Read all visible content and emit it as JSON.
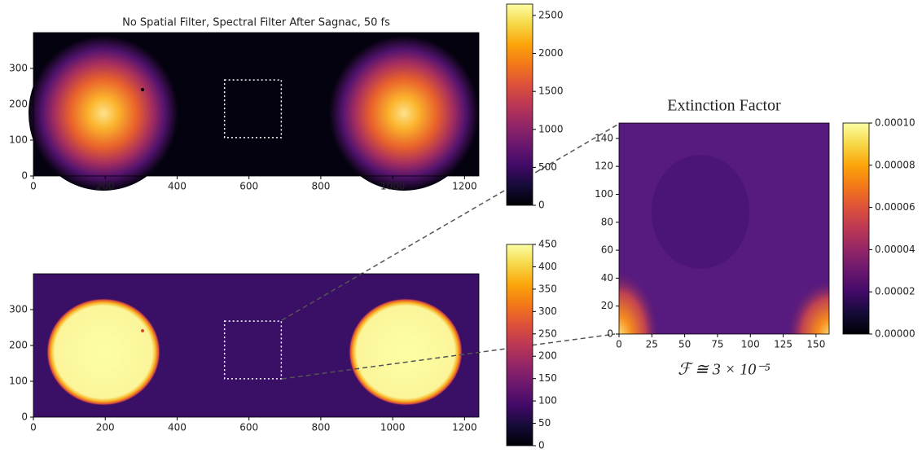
{
  "chart_data": [
    {
      "type": "heatmap",
      "title": "No Spatial Filter, Spectral Filter After Sagnac, 50 fs",
      "xlim": [
        0,
        1240
      ],
      "ylim": [
        0,
        400
      ],
      "xticks": [
        0,
        200,
        400,
        600,
        800,
        1000,
        1200
      ],
      "yticks": [
        0,
        100,
        200,
        300
      ],
      "clim": [
        0,
        2650
      ],
      "cticks": [
        0,
        500,
        1000,
        1500,
        2000,
        2500
      ],
      "colormap": "inferno",
      "roi": {
        "x": [
          532,
          690
        ],
        "y": [
          107,
          268
        ]
      }
    },
    {
      "type": "heatmap",
      "xlim": [
        0,
        1240
      ],
      "ylim": [
        0,
        400
      ],
      "xticks": [
        0,
        200,
        400,
        600,
        800,
        1000,
        1200
      ],
      "yticks": [
        0,
        100,
        200,
        300
      ],
      "clim": [
        0,
        450
      ],
      "cticks": [
        0,
        50,
        100,
        150,
        200,
        250,
        300,
        350,
        400,
        450
      ],
      "colormap": "inferno",
      "roi": {
        "x": [
          532,
          690
        ],
        "y": [
          107,
          268
        ]
      }
    },
    {
      "type": "heatmap",
      "title": "Extinction Factor",
      "annotation": "ℱ ≅ 3 × 10⁻⁵",
      "xlim": [
        0,
        160
      ],
      "ylim": [
        0,
        151
      ],
      "xticks": [
        0,
        25,
        50,
        75,
        100,
        125,
        150
      ],
      "yticks": [
        0,
        20,
        40,
        60,
        80,
        100,
        120,
        140
      ],
      "clim": [
        0,
        0.0001
      ],
      "cticks": [
        {
          "value": 0,
          "label": "0.00000"
        },
        {
          "value": 2e-05,
          "label": "0.00002"
        },
        {
          "value": 4e-05,
          "label": "0.00004"
        },
        {
          "value": 6e-05,
          "label": "0.00006"
        },
        {
          "value": 8e-05,
          "label": "0.00008"
        },
        {
          "value": 0.0001,
          "label": "0.00010"
        }
      ],
      "colormap": "inferno"
    }
  ]
}
